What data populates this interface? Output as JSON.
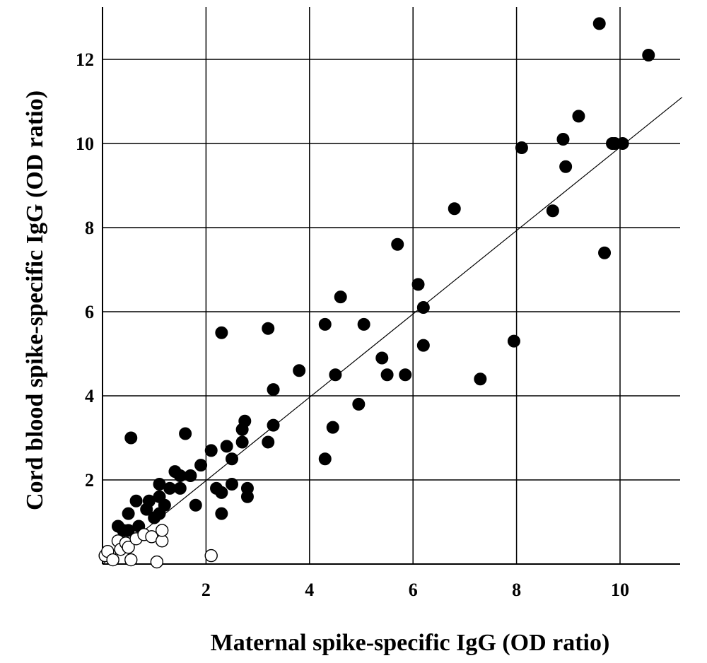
{
  "chart_data": {
    "type": "scatter",
    "xlabel": "Maternal  spike-specific IgG (OD ratio)",
    "ylabel": "Cord blood spike-specific IgG (OD ratio)",
    "xlim": [
      0,
      11.2
    ],
    "ylim": [
      0,
      12.9
    ],
    "xticks": [
      "2",
      "4",
      "6",
      "8",
      "10"
    ],
    "yticks": [
      "2",
      "4",
      "6",
      "8",
      "10",
      "12"
    ],
    "grid": true,
    "trendline": {
      "x": [
        0,
        11.2
      ],
      "y": [
        0,
        11.1
      ]
    },
    "series": [
      {
        "marker": "filled-circle",
        "color": "#000000",
        "points": [
          [
            0.3,
            0.9
          ],
          [
            0.4,
            0.8
          ],
          [
            0.5,
            0.8
          ],
          [
            0.55,
            3.0
          ],
          [
            0.5,
            1.2
          ],
          [
            0.65,
            1.5
          ],
          [
            0.7,
            0.9
          ],
          [
            0.85,
            1.3
          ],
          [
            0.9,
            1.5
          ],
          [
            1.0,
            1.1
          ],
          [
            1.1,
            1.2
          ],
          [
            1.1,
            1.6
          ],
          [
            1.1,
            1.9
          ],
          [
            1.2,
            1.4
          ],
          [
            1.3,
            1.8
          ],
          [
            1.4,
            2.2
          ],
          [
            1.5,
            2.1
          ],
          [
            1.5,
            1.8
          ],
          [
            1.6,
            3.1
          ],
          [
            1.7,
            2.1
          ],
          [
            1.8,
            1.4
          ],
          [
            1.9,
            2.35
          ],
          [
            2.1,
            2.7
          ],
          [
            2.2,
            1.8
          ],
          [
            2.3,
            5.5
          ],
          [
            2.3,
            1.2
          ],
          [
            2.3,
            1.7
          ],
          [
            2.4,
            2.8
          ],
          [
            2.5,
            2.5
          ],
          [
            2.5,
            1.9
          ],
          [
            2.7,
            2.9
          ],
          [
            2.7,
            3.2
          ],
          [
            2.75,
            3.4
          ],
          [
            2.8,
            1.6
          ],
          [
            2.8,
            1.8
          ],
          [
            3.2,
            5.6
          ],
          [
            3.2,
            2.9
          ],
          [
            3.3,
            4.15
          ],
          [
            3.3,
            3.3
          ],
          [
            3.8,
            4.6
          ],
          [
            4.3,
            5.7
          ],
          [
            4.3,
            2.5
          ],
          [
            4.45,
            3.25
          ],
          [
            4.5,
            4.5
          ],
          [
            4.6,
            6.35
          ],
          [
            4.95,
            3.8
          ],
          [
            5.05,
            5.7
          ],
          [
            5.4,
            4.9
          ],
          [
            5.5,
            4.5
          ],
          [
            5.7,
            7.6
          ],
          [
            5.85,
            4.5
          ],
          [
            6.1,
            6.65
          ],
          [
            6.2,
            6.1
          ],
          [
            6.2,
            5.2
          ],
          [
            6.8,
            8.45
          ],
          [
            7.3,
            4.4
          ],
          [
            7.95,
            5.3
          ],
          [
            8.1,
            9.9
          ],
          [
            8.7,
            8.4
          ],
          [
            8.9,
            10.1
          ],
          [
            8.95,
            9.45
          ],
          [
            9.2,
            10.65
          ],
          [
            9.6,
            12.85
          ],
          [
            9.7,
            7.4
          ],
          [
            9.85,
            10.0
          ],
          [
            9.9,
            10.0
          ],
          [
            10.05,
            10.0
          ],
          [
            10.55,
            12.1
          ]
        ]
      },
      {
        "marker": "open-circle",
        "color": "#000000",
        "points": [
          [
            0.05,
            0.2
          ],
          [
            0.1,
            0.3
          ],
          [
            0.2,
            0.1
          ],
          [
            0.3,
            0.55
          ],
          [
            0.35,
            0.35
          ],
          [
            0.45,
            0.5
          ],
          [
            0.5,
            0.4
          ],
          [
            0.55,
            0.1
          ],
          [
            0.65,
            0.6
          ],
          [
            0.8,
            0.7
          ],
          [
            0.95,
            0.65
          ],
          [
            1.05,
            0.05
          ],
          [
            1.15,
            0.55
          ],
          [
            1.15,
            0.8
          ],
          [
            2.1,
            0.2
          ]
        ]
      }
    ]
  }
}
